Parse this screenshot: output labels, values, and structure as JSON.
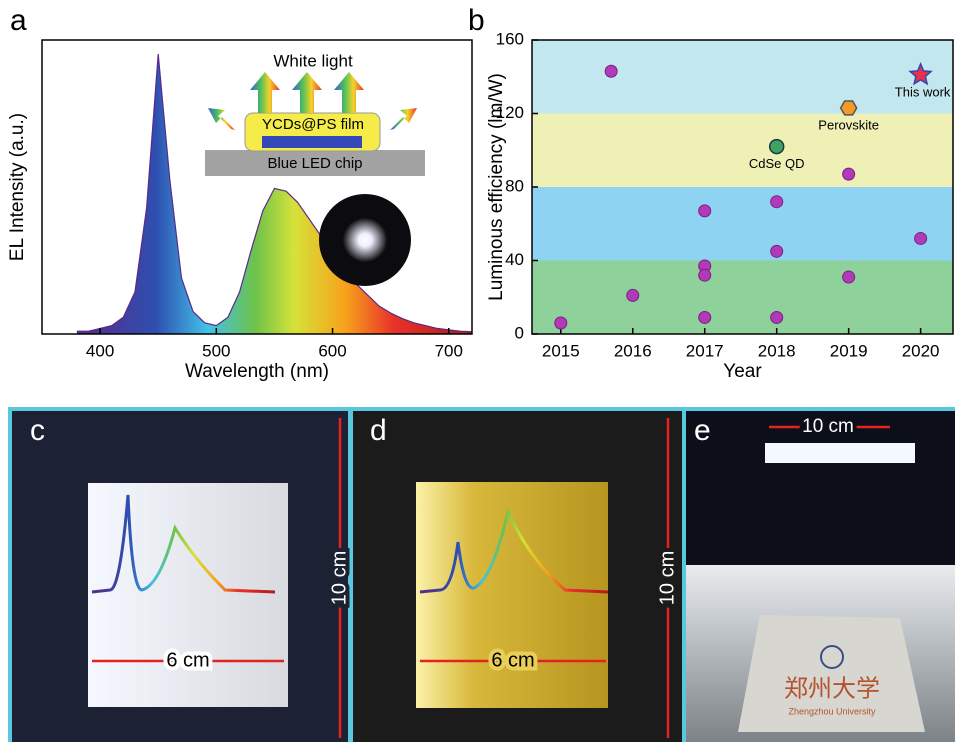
{
  "chart_data": [
    {
      "type": "line",
      "panel": "a",
      "xlabel": "Wavelength (nm)",
      "ylabel": "EL Intensity (a.u.)",
      "xlim": [
        350,
        720
      ],
      "ylim": [
        0,
        1.05
      ],
      "xticks": [
        400,
        500,
        600,
        700
      ],
      "x": [
        380,
        390,
        400,
        410,
        420,
        430,
        440,
        450,
        460,
        470,
        480,
        490,
        500,
        510,
        520,
        530,
        540,
        550,
        560,
        570,
        580,
        590,
        600,
        610,
        620,
        630,
        640,
        650,
        660,
        670,
        680,
        690,
        700,
        710,
        720
      ],
      "values": [
        0.01,
        0.01,
        0.02,
        0.03,
        0.06,
        0.15,
        0.45,
        1.0,
        0.55,
        0.2,
        0.08,
        0.04,
        0.03,
        0.06,
        0.15,
        0.3,
        0.44,
        0.52,
        0.51,
        0.47,
        0.41,
        0.35,
        0.29,
        0.23,
        0.18,
        0.14,
        0.1,
        0.075,
        0.055,
        0.04,
        0.03,
        0.02,
        0.015,
        0.01,
        0.008
      ],
      "color": "#5a2a8a",
      "annotations": [
        "White light",
        "YCDs@PS film",
        "Blue LED chip"
      ]
    },
    {
      "type": "scatter",
      "panel": "b",
      "xlabel": "Year",
      "ylabel": "Luminous efficiency (lm/W)",
      "xlim": [
        2014.6,
        2020.45
      ],
      "ylim": [
        0,
        160
      ],
      "xticks": [
        2015,
        2016,
        2017,
        2018,
        2019,
        2020
      ],
      "yticks": [
        0,
        40,
        80,
        120,
        160
      ],
      "x": [
        2015,
        2015.7,
        2016,
        2017,
        2017,
        2017,
        2017,
        2018,
        2018,
        2018,
        2019,
        2019,
        2020
      ],
      "values": [
        6,
        143,
        21,
        67,
        37,
        32,
        9,
        72,
        45,
        9,
        87,
        31,
        52
      ],
      "color": "#b03ab8",
      "bands": [
        {
          "from": 0,
          "to": 40,
          "color": "#8fd19a"
        },
        {
          "from": 40,
          "to": 80,
          "color": "#8ed3f2"
        },
        {
          "from": 80,
          "to": 120,
          "color": "#eef0b6"
        },
        {
          "from": 120,
          "to": 160,
          "color": "#c3e7ee"
        }
      ],
      "highlights": [
        {
          "label": "CdSe QD",
          "x": 2018,
          "y": 102,
          "color": "#3fa360"
        },
        {
          "label": "Perovskite",
          "x": 2019,
          "y": 123,
          "color": "#f39a2a"
        },
        {
          "label": "This work",
          "x": 2020,
          "y": 141,
          "color": "#e8304a"
        }
      ]
    }
  ],
  "photos": [
    {
      "panel": "c",
      "width_label": "6 cm",
      "height_label": "10 cm"
    },
    {
      "panel": "d",
      "width_label": "6 cm",
      "height_label": "10 cm"
    },
    {
      "panel": "e",
      "width_label": "10 cm",
      "sign_text": "郑州大学",
      "sign_subtext": "Zhengzhou University"
    }
  ]
}
